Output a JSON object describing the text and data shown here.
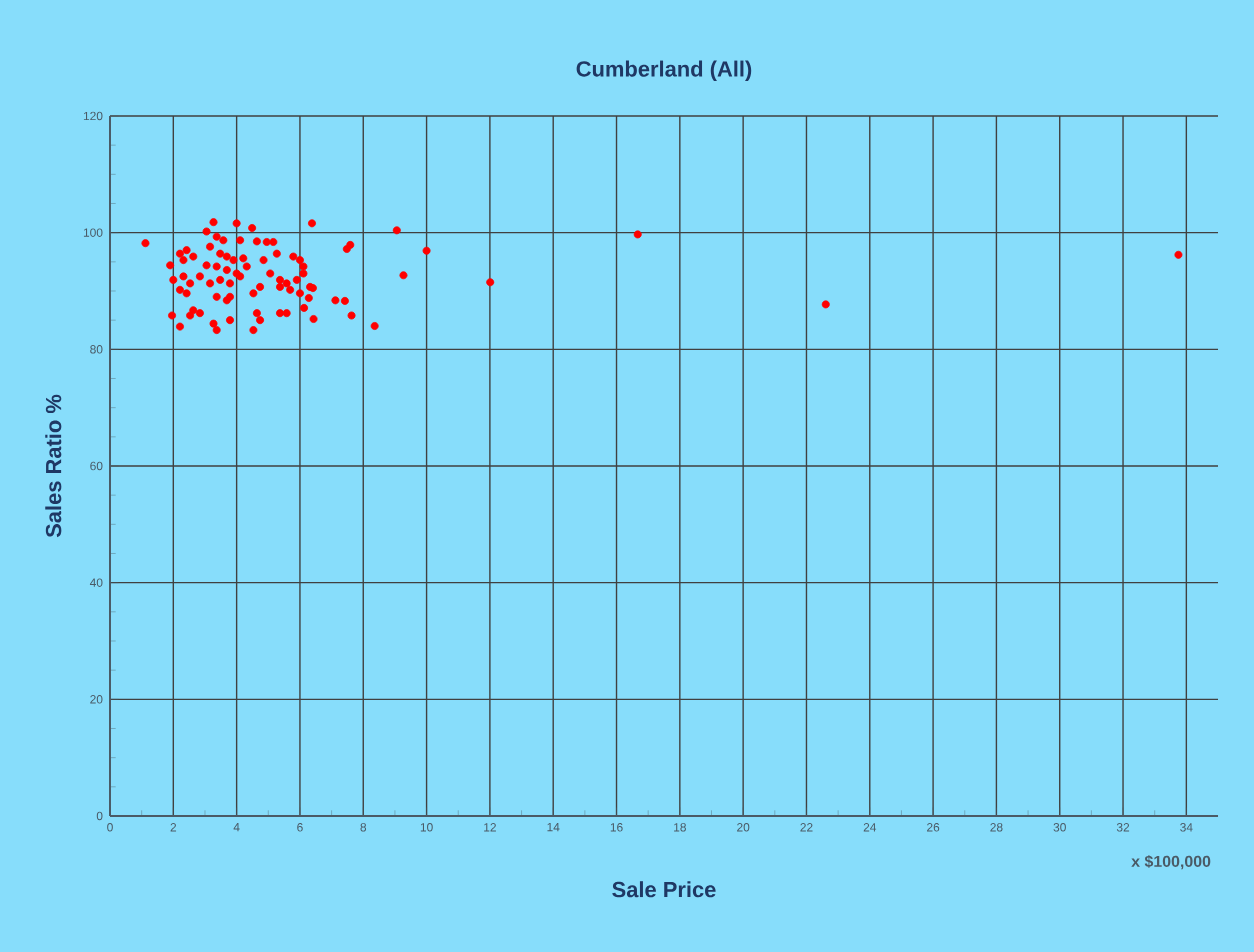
{
  "chart_data": {
    "type": "scatter",
    "title": "Cumberland (All)",
    "xlabel": "Sale Price",
    "ylabel": "Sales Ratio %",
    "annotations": [
      "x $100,000"
    ],
    "xlim": [
      0,
      35
    ],
    "xticks": [
      0,
      2,
      4,
      6,
      8,
      10,
      12,
      14,
      16,
      18,
      20,
      22,
      24,
      26,
      28,
      30,
      32,
      34
    ],
    "ylim": [
      0,
      120
    ],
    "yticks": [
      0,
      20,
      40,
      60,
      80,
      100,
      120
    ],
    "grid": true,
    "series": [
      {
        "color": "#ff0000",
        "x": [
          1.12,
          3.27,
          4.0,
          4.49,
          6.38,
          9.06,
          3.05,
          3.37,
          3.58,
          3.16,
          3.48,
          3.69,
          3.9,
          4.21,
          4.11,
          4.64,
          4.95,
          5.16,
          5.27,
          4.85,
          5.79,
          6.0,
          6.11,
          2.21,
          2.42,
          1.9,
          2.32,
          2.63,
          3.05,
          3.37,
          3.69,
          4.0,
          4.32,
          2.0,
          2.32,
          2.53,
          2.84,
          3.16,
          3.48,
          3.79,
          4.11,
          4.74,
          5.06,
          5.37,
          5.58,
          5.9,
          6.11,
          6.32,
          2.42,
          2.21,
          3.37,
          3.69,
          3.79,
          4.53,
          5.37,
          5.69,
          6.0,
          1.96,
          2.21,
          2.63,
          2.84,
          2.53,
          3.27,
          3.37,
          3.79,
          4.64,
          4.74,
          4.53,
          5.37,
          5.58,
          7.59,
          7.48,
          10.0,
          9.27,
          12.01,
          16.67,
          22.61,
          33.75,
          8.36,
          7.63,
          7.12,
          7.42,
          6.43,
          6.41,
          6.28,
          6.13
        ],
        "values": [
          98.2,
          101.8,
          101.6,
          100.8,
          101.6,
          100.4,
          100.2,
          99.3,
          98.7,
          97.6,
          96.4,
          95.9,
          95.3,
          95.6,
          98.7,
          98.5,
          98.4,
          98.4,
          96.4,
          95.3,
          95.9,
          95.3,
          94.2,
          96.4,
          97.0,
          94.4,
          95.3,
          95.9,
          94.4,
          94.2,
          93.6,
          93.0,
          94.2,
          91.9,
          92.5,
          91.3,
          92.5,
          91.3,
          91.9,
          91.3,
          92.5,
          90.7,
          93.0,
          91.9,
          91.3,
          91.9,
          93.0,
          90.7,
          89.6,
          90.2,
          89.0,
          88.4,
          89.0,
          89.6,
          90.7,
          90.2,
          89.6,
          85.8,
          83.9,
          86.7,
          86.2,
          85.8,
          84.4,
          83.3,
          85.0,
          86.2,
          85.0,
          83.3,
          86.2,
          86.2,
          97.9,
          97.2,
          96.9,
          92.7,
          91.5,
          99.7,
          87.7,
          96.2,
          84.0,
          85.8,
          88.4,
          88.3,
          85.2,
          90.5,
          88.8,
          87.1
        ]
      }
    ]
  }
}
